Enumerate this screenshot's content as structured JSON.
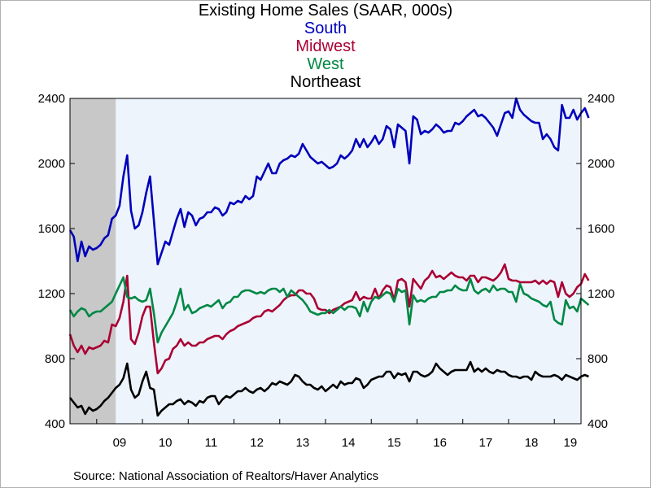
{
  "chart_data": {
    "type": "line",
    "title": "Existing Home Sales (SAAR, 000s)",
    "source": "Source:  National Association of Realtors/Haver Analytics",
    "x_start": "2008-06",
    "x_end": "2019-08",
    "year_labels": [
      "09",
      "10",
      "11",
      "12",
      "13",
      "14",
      "15",
      "16",
      "17",
      "18",
      "19"
    ],
    "ylim": [
      400,
      2400
    ],
    "yticks": [
      400,
      800,
      1200,
      1600,
      2000,
      2400
    ],
    "recession": {
      "start": "2008-06",
      "end": "2009-06"
    },
    "background": "#eef4fc",
    "recession_color": "#c8c8c8",
    "series": [
      {
        "name": "South",
        "color": "#0000bb",
        "values": [
          1590,
          1550,
          1400,
          1520,
          1430,
          1490,
          1470,
          1480,
          1500,
          1540,
          1560,
          1660,
          1680,
          1740,
          1920,
          2050,
          1710,
          1600,
          1620,
          1700,
          1820,
          1920,
          1650,
          1380,
          1450,
          1520,
          1500,
          1580,
          1660,
          1720,
          1610,
          1700,
          1680,
          1620,
          1660,
          1670,
          1700,
          1700,
          1730,
          1720,
          1680,
          1700,
          1760,
          1750,
          1770,
          1760,
          1800,
          1780,
          1800,
          1920,
          1900,
          1950,
          2000,
          1940,
          1940,
          2000,
          2020,
          2030,
          2050,
          2040,
          2060,
          2120,
          2080,
          2040,
          2020,
          2000,
          2010,
          1990,
          1970,
          1980,
          2000,
          2050,
          2030,
          2050,
          2080,
          2150,
          2100,
          2150,
          2100,
          2130,
          2170,
          2120,
          2150,
          2230,
          2210,
          2100,
          2240,
          2220,
          2200,
          2000,
          2290,
          2270,
          2180,
          2200,
          2190,
          2210,
          2240,
          2220,
          2190,
          2200,
          2200,
          2250,
          2240,
          2260,
          2290,
          2310,
          2330,
          2290,
          2300,
          2280,
          2250,
          2220,
          2170,
          2240,
          2310,
          2320,
          2280,
          2400,
          2330,
          2300,
          2280,
          2260,
          2250,
          2250,
          2150,
          2180,
          2150,
          2100,
          2080,
          2360,
          2280,
          2280,
          2330,
          2270,
          2310,
          2340,
          2280
        ]
      },
      {
        "name": "Midwest",
        "color": "#aa0033",
        "values": [
          950,
          880,
          840,
          880,
          830,
          870,
          860,
          870,
          880,
          910,
          900,
          1010,
          1000,
          1050,
          1150,
          1310,
          920,
          890,
          960,
          1060,
          1120,
          1120,
          900,
          710,
          740,
          790,
          800,
          860,
          880,
          920,
          880,
          900,
          880,
          880,
          900,
          900,
          920,
          930,
          940,
          940,
          920,
          950,
          970,
          980,
          1000,
          1010,
          1020,
          1030,
          1050,
          1060,
          1060,
          1090,
          1100,
          1090,
          1110,
          1130,
          1160,
          1180,
          1190,
          1190,
          1220,
          1220,
          1200,
          1200,
          1170,
          1110,
          1100,
          1100,
          1080,
          1100,
          1110,
          1120,
          1140,
          1150,
          1160,
          1210,
          1160,
          1180,
          1170,
          1170,
          1230,
          1170,
          1220,
          1250,
          1240,
          1160,
          1280,
          1290,
          1270,
          1120,
          1290,
          1260,
          1230,
          1280,
          1300,
          1340,
          1300,
          1310,
          1290,
          1310,
          1330,
          1310,
          1300,
          1300,
          1280,
          1310,
          1310,
          1270,
          1300,
          1300,
          1290,
          1280,
          1300,
          1330,
          1380,
          1290,
          1280,
          1280,
          1270,
          1270,
          1270,
          1270,
          1280,
          1260,
          1280,
          1260,
          1280,
          1270,
          1180,
          1270,
          1200,
          1180,
          1200,
          1240,
          1260,
          1320,
          1280
        ]
      },
      {
        "name": "West",
        "color": "#008844",
        "values": [
          1100,
          1060,
          1090,
          1110,
          1100,
          1060,
          1080,
          1090,
          1090,
          1110,
          1130,
          1150,
          1200,
          1250,
          1300,
          1180,
          1170,
          1180,
          1160,
          1150,
          1160,
          1230,
          1080,
          900,
          960,
          1000,
          1040,
          1080,
          1150,
          1230,
          1100,
          1130,
          1080,
          1090,
          1110,
          1120,
          1130,
          1120,
          1140,
          1160,
          1110,
          1140,
          1150,
          1180,
          1180,
          1210,
          1220,
          1220,
          1210,
          1200,
          1210,
          1200,
          1220,
          1230,
          1230,
          1210,
          1230,
          1180,
          1220,
          1200,
          1180,
          1160,
          1130,
          1090,
          1080,
          1070,
          1080,
          1080,
          1100,
          1080,
          1100,
          1120,
          1100,
          1120,
          1120,
          1110,
          1060,
          1150,
          1090,
          1150,
          1180,
          1170,
          1190,
          1210,
          1200,
          1150,
          1230,
          1210,
          1220,
          1010,
          1190,
          1150,
          1160,
          1150,
          1170,
          1180,
          1180,
          1210,
          1210,
          1220,
          1220,
          1250,
          1230,
          1220,
          1220,
          1290,
          1220,
          1200,
          1220,
          1230,
          1210,
          1250,
          1220,
          1230,
          1230,
          1210,
          1210,
          1150,
          1260,
          1200,
          1190,
          1170,
          1160,
          1150,
          1130,
          1120,
          1150,
          1040,
          1020,
          1010,
          1160,
          1110,
          1120,
          1090,
          1170,
          1150,
          1130
        ]
      },
      {
        "name": "Northeast",
        "color": "#000000",
        "values": [
          560,
          530,
          500,
          510,
          460,
          500,
          480,
          490,
          510,
          540,
          560,
          590,
          620,
          640,
          680,
          770,
          610,
          560,
          580,
          660,
          720,
          620,
          610,
          450,
          480,
          500,
          520,
          520,
          540,
          550,
          520,
          540,
          530,
          510,
          540,
          530,
          560,
          570,
          570,
          520,
          550,
          570,
          560,
          580,
          600,
          600,
          620,
          600,
          590,
          610,
          620,
          600,
          620,
          650,
          640,
          660,
          650,
          640,
          660,
          700,
          690,
          660,
          640,
          640,
          620,
          610,
          630,
          600,
          620,
          640,
          620,
          660,
          640,
          650,
          650,
          680,
          670,
          620,
          640,
          670,
          680,
          690,
          690,
          720,
          720,
          680,
          710,
          700,
          710,
          660,
          720,
          720,
          700,
          690,
          700,
          720,
          770,
          740,
          720,
          700,
          720,
          730,
          730,
          730,
          730,
          780,
          720,
          740,
          720,
          740,
          720,
          710,
          730,
          720,
          720,
          700,
          690,
          690,
          680,
          690,
          690,
          670,
          720,
          700,
          690,
          690,
          690,
          700,
          690,
          670,
          700,
          690,
          680,
          670,
          690,
          700,
          690
        ]
      }
    ]
  }
}
